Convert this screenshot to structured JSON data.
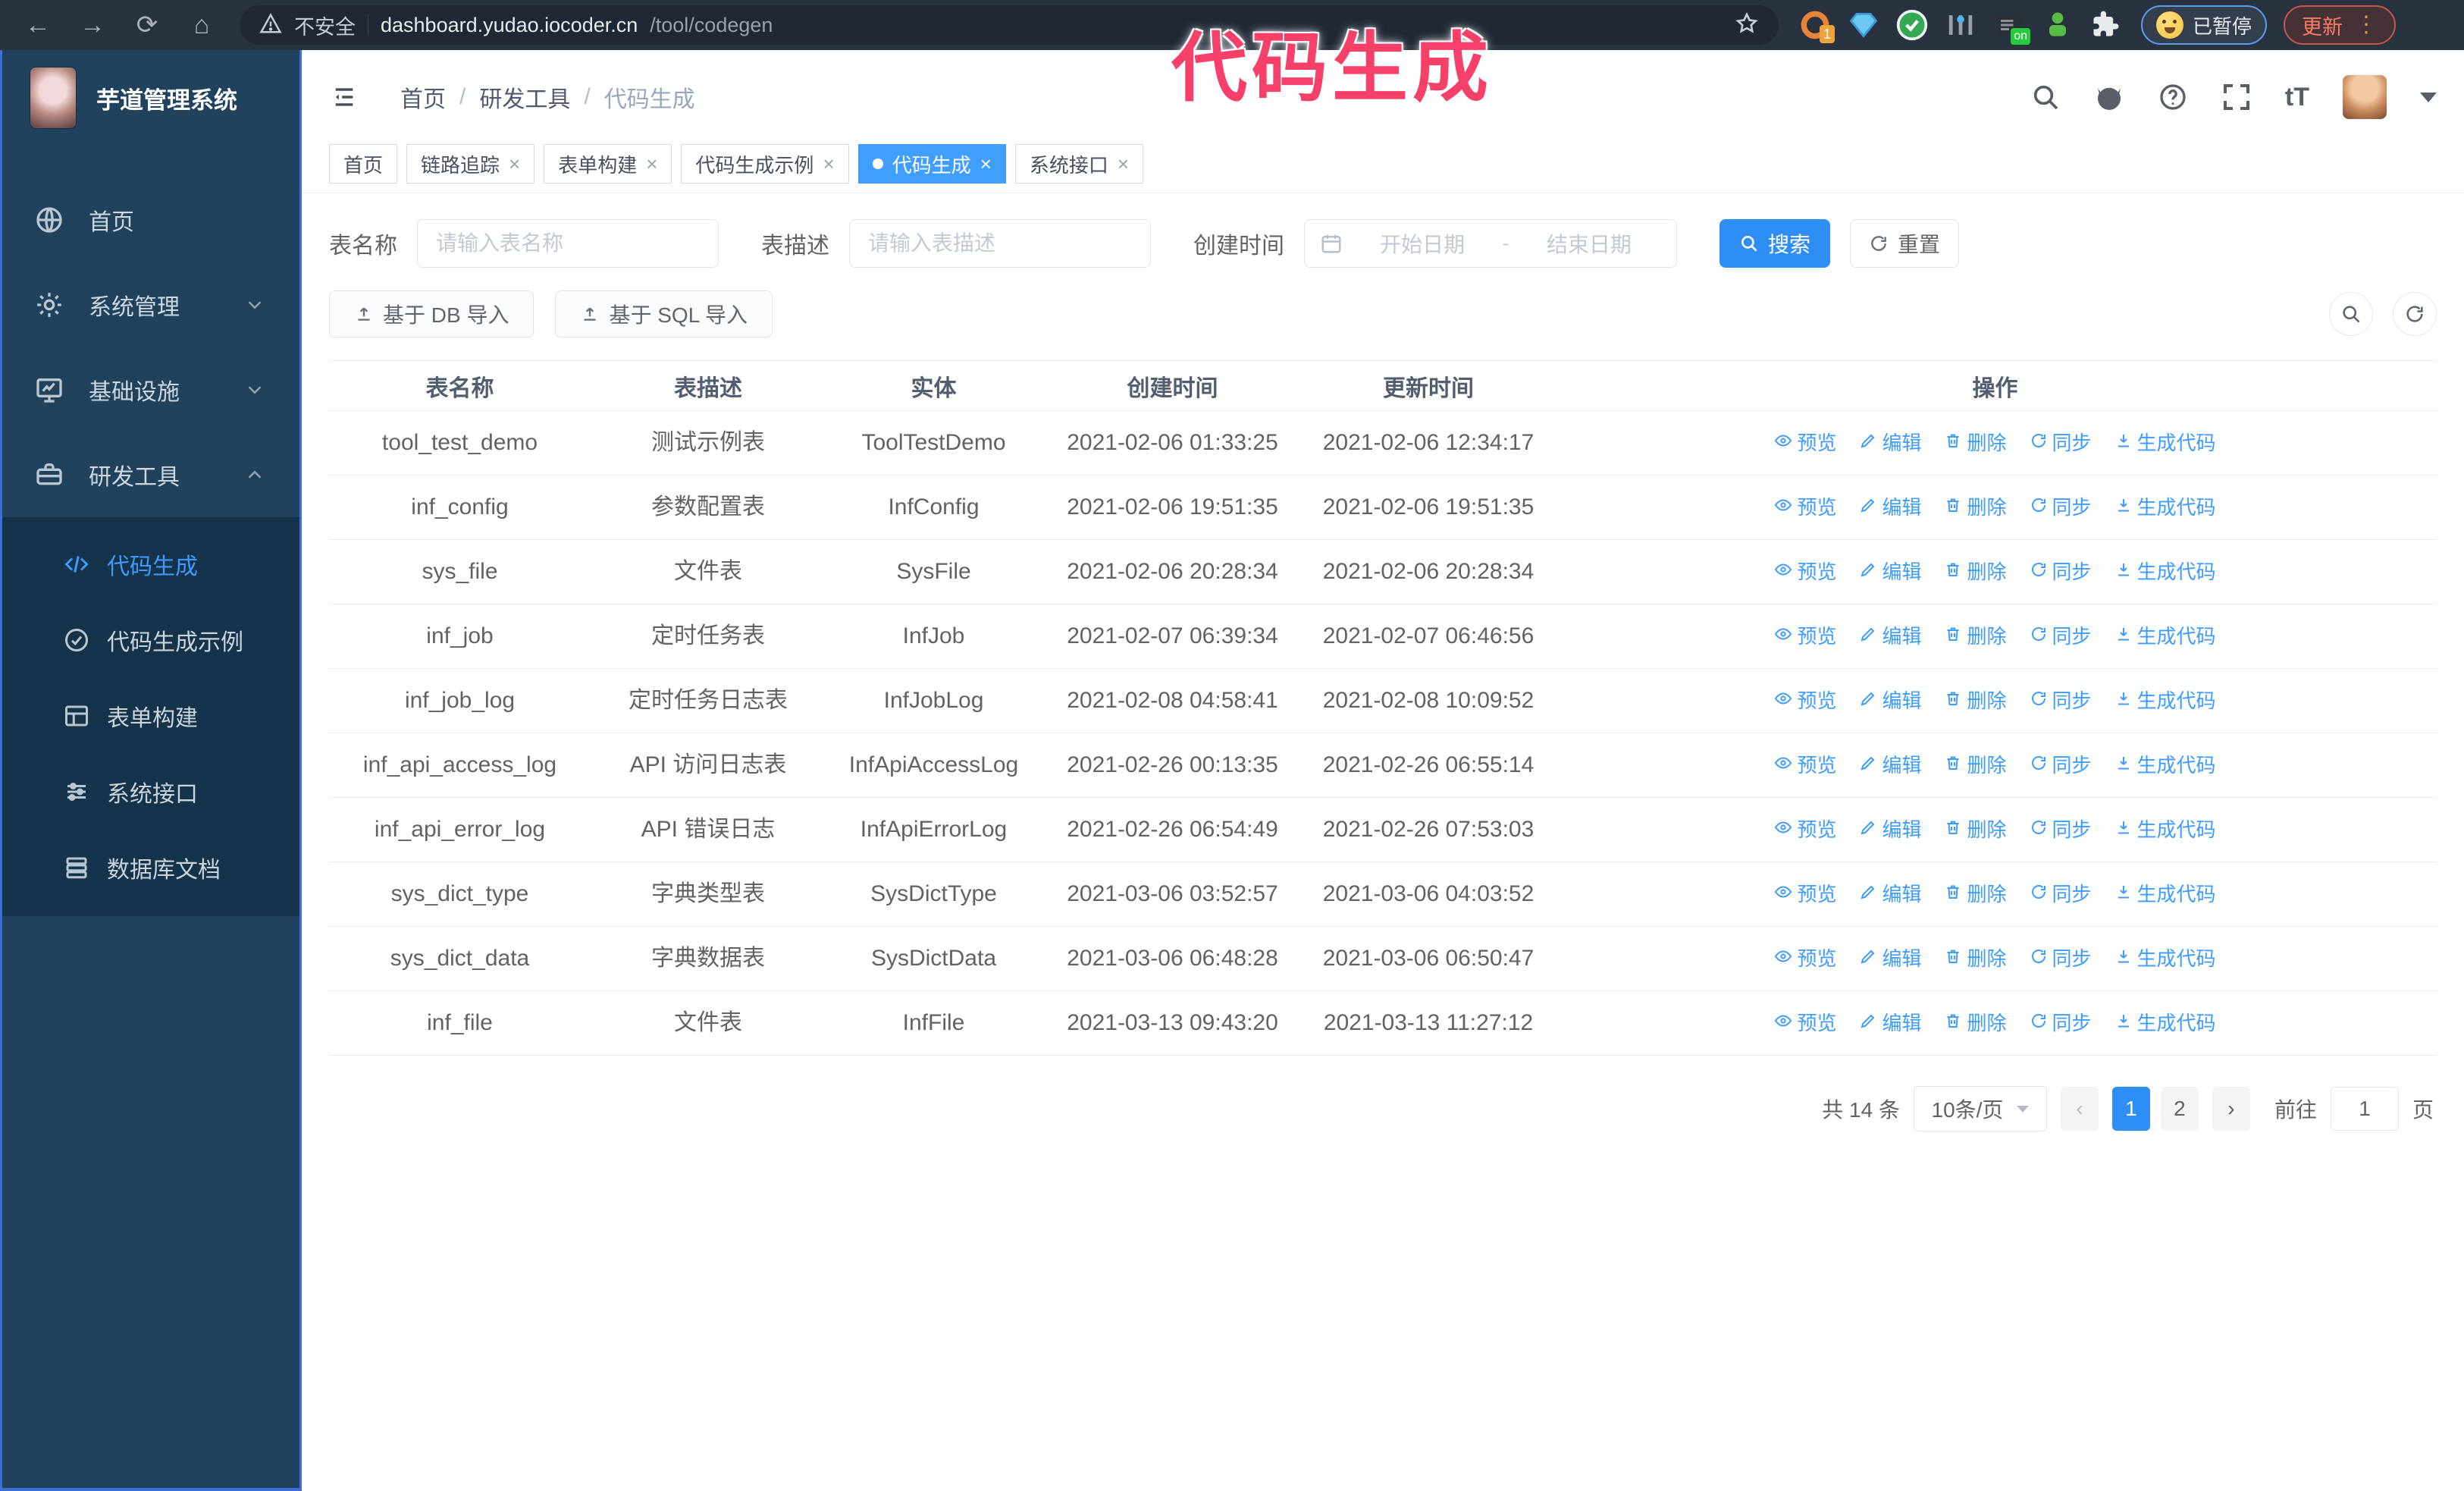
{
  "browser": {
    "secure_label": "不安全",
    "url_host": "dashboard.yudao.iocoder.cn",
    "url_path": "/tool/codegen",
    "ext_badge": "1",
    "ext_on_badge": "on",
    "profile_label": "已暂停",
    "update_label": "更新"
  },
  "annotation": {
    "text": "代码生成",
    "color": "#f5416a"
  },
  "sidebar": {
    "logo_title": "芋道管理系统",
    "items": [
      {
        "id": "home",
        "label": "首页",
        "icon": "globe"
      },
      {
        "id": "system",
        "label": "系统管理",
        "icon": "gear",
        "chevron": "down"
      },
      {
        "id": "infra",
        "label": "基础设施",
        "icon": "monitor",
        "chevron": "down"
      },
      {
        "id": "dev",
        "label": "研发工具",
        "icon": "toolbox",
        "chevron": "up",
        "expanded": true
      }
    ],
    "subitems": [
      {
        "id": "codegen",
        "label": "代码生成",
        "icon": "code",
        "active": true
      },
      {
        "id": "codegen-example",
        "label": "代码生成示例",
        "icon": "check-circle"
      },
      {
        "id": "form-builder",
        "label": "表单构建",
        "icon": "form"
      },
      {
        "id": "system-api",
        "label": "系统接口",
        "icon": "sliders"
      },
      {
        "id": "db-doc",
        "label": "数据库文档",
        "icon": "database"
      }
    ]
  },
  "header": {
    "breadcrumb": [
      "首页",
      "研发工具",
      "代码生成"
    ]
  },
  "tabs": [
    {
      "id": "home",
      "label": "首页",
      "closable": false,
      "active": false
    },
    {
      "id": "tracer",
      "label": "链路追踪",
      "closable": true,
      "active": false
    },
    {
      "id": "form-build",
      "label": "表单构建",
      "closable": true,
      "active": false
    },
    {
      "id": "codegen-example",
      "label": "代码生成示例",
      "closable": true,
      "active": false
    },
    {
      "id": "codegen",
      "label": "代码生成",
      "closable": true,
      "active": true
    },
    {
      "id": "system-api",
      "label": "系统接口",
      "closable": true,
      "active": false
    }
  ],
  "filters": {
    "table_name_label": "表名称",
    "table_name_placeholder": "请输入表名称",
    "table_desc_label": "表描述",
    "table_desc_placeholder": "请输入表描述",
    "create_time_label": "创建时间",
    "date_start_placeholder": "开始日期",
    "date_separator": "-",
    "date_end_placeholder": "结束日期",
    "search_label": "搜索",
    "reset_label": "重置"
  },
  "toolbar": {
    "import_db_label": "基于 DB 导入",
    "import_sql_label": "基于 SQL 导入"
  },
  "table": {
    "columns": [
      "表名称",
      "表描述",
      "实体",
      "创建时间",
      "更新时间",
      "操作"
    ],
    "actions": [
      {
        "id": "preview",
        "label": "预览",
        "icon": "eye"
      },
      {
        "id": "edit",
        "label": "编辑",
        "icon": "edit"
      },
      {
        "id": "delete",
        "label": "删除",
        "icon": "trash"
      },
      {
        "id": "sync",
        "label": "同步",
        "icon": "sync"
      },
      {
        "id": "generate",
        "label": "生成代码",
        "icon": "download"
      }
    ],
    "rows": [
      {
        "name": "tool_test_demo",
        "desc": "测试示例表",
        "entity": "ToolTestDemo",
        "created": "2021-02-06 01:33:25",
        "updated": "2021-02-06 12:34:17"
      },
      {
        "name": "inf_config",
        "desc": "参数配置表",
        "entity": "InfConfig",
        "created": "2021-02-06 19:51:35",
        "updated": "2021-02-06 19:51:35"
      },
      {
        "name": "sys_file",
        "desc": "文件表",
        "entity": "SysFile",
        "created": "2021-02-06 20:28:34",
        "updated": "2021-02-06 20:28:34"
      },
      {
        "name": "inf_job",
        "desc": "定时任务表",
        "entity": "InfJob",
        "created": "2021-02-07 06:39:34",
        "updated": "2021-02-07 06:46:56"
      },
      {
        "name": "inf_job_log",
        "desc": "定时任务日志表",
        "entity": "InfJobLog",
        "created": "2021-02-08 04:58:41",
        "updated": "2021-02-08 10:09:52"
      },
      {
        "name": "inf_api_access_log",
        "desc": "API 访问日志表",
        "entity": "InfApiAccessLog",
        "created": "2021-02-26 00:13:35",
        "updated": "2021-02-26 06:55:14"
      },
      {
        "name": "inf_api_error_log",
        "desc": "API 错误日志",
        "entity": "InfApiErrorLog",
        "created": "2021-02-26 06:54:49",
        "updated": "2021-02-26 07:53:03"
      },
      {
        "name": "sys_dict_type",
        "desc": "字典类型表",
        "entity": "SysDictType",
        "created": "2021-03-06 03:52:57",
        "updated": "2021-03-06 04:03:52"
      },
      {
        "name": "sys_dict_data",
        "desc": "字典数据表",
        "entity": "SysDictData",
        "created": "2021-03-06 06:48:28",
        "updated": "2021-03-06 06:50:47"
      },
      {
        "name": "inf_file",
        "desc": "文件表",
        "entity": "InfFile",
        "created": "2021-03-13 09:43:20",
        "updated": "2021-03-13 11:27:12"
      }
    ]
  },
  "pagination": {
    "total_label": "共 14 条",
    "page_size_label": "10条/页",
    "prev_label": "‹",
    "next_label": "›",
    "pages": [
      {
        "label": "1",
        "active": true
      },
      {
        "label": "2",
        "active": false
      }
    ],
    "goto_label": "前往",
    "goto_value": "1",
    "page_suffix_label": "页"
  },
  "colors": {
    "accent": "#409eff",
    "annotation": "#f5416a",
    "sidebar_bg": "#20425c",
    "submenu_bg": "#15334a",
    "link": "#3f9cff"
  }
}
